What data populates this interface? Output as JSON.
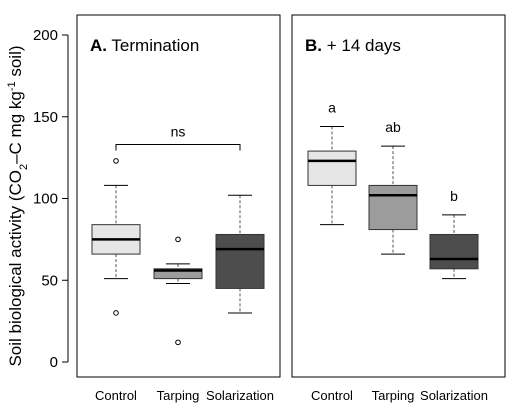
{
  "y_axis": {
    "label_main": "Soil biological activity (CO",
    "label_sub": "2",
    "label_mid": "–C mg kg",
    "label_sup": "-1",
    "label_end": " soil)",
    "ticks": [
      "0",
      "50",
      "100",
      "150",
      "200"
    ]
  },
  "colors": {
    "control": "#e6e6e6",
    "tarping": "#9c9c9c",
    "solarization": "#4d4d4d",
    "axis": "#000000",
    "whisker": "#555555"
  },
  "chart_data": [
    {
      "type": "box",
      "panel_letter": "A.",
      "panel_title": "Termination",
      "categories": [
        "Control",
        "Tarping",
        "Solarization"
      ],
      "ylim": [
        0,
        200
      ],
      "boxes": [
        {
          "name": "Control",
          "min": 51,
          "q1": 66,
          "median": 75,
          "q3": 84,
          "max": 108,
          "outliers": [
            123,
            30
          ]
        },
        {
          "name": "Tarping",
          "min": 48,
          "q1": 51,
          "median": 56,
          "q3": 57,
          "max": 60,
          "outliers": [
            75,
            12
          ]
        },
        {
          "name": "Solarization",
          "min": 30,
          "q1": 45,
          "median": 69,
          "q3": 78,
          "max": 102,
          "outliers": []
        }
      ],
      "significance": {
        "type": "bracket",
        "label": "ns",
        "y_value": 133
      }
    },
    {
      "type": "box",
      "panel_letter": "B.",
      "panel_title": "+ 14 days",
      "categories": [
        "Control",
        "Tarping",
        "Solarization"
      ],
      "ylim": [
        0,
        200
      ],
      "boxes": [
        {
          "name": "Control",
          "min": 84,
          "q1": 108,
          "median": 123,
          "q3": 129,
          "max": 144,
          "outliers": []
        },
        {
          "name": "Tarping",
          "min": 66,
          "q1": 81,
          "median": 102,
          "q3": 108,
          "max": 132,
          "outliers": []
        },
        {
          "name": "Solarization",
          "min": 51,
          "q1": 57,
          "median": 63,
          "q3": 78,
          "max": 90,
          "outliers": []
        }
      ],
      "significance": {
        "type": "letters",
        "labels": [
          "a",
          "ab",
          "b"
        ]
      }
    }
  ]
}
